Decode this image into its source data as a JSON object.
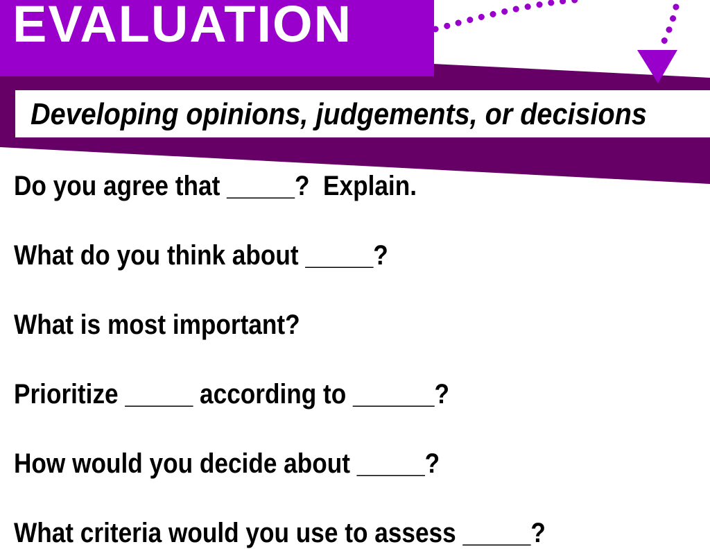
{
  "title": "EVALUATION",
  "subtitle": "Developing opinions, judgements, or decisions",
  "colors": {
    "title_bg": "#9900cc",
    "band": "#660066",
    "dots": "#9900cc"
  },
  "questions": [
    "Do you agree that _____?  Explain.",
    "What do you think about _____?",
    "What is most important?",
    "Prioritize _____ according to ______?",
    "How would you decide about _____?",
    "What criteria would you use to assess _____?"
  ]
}
